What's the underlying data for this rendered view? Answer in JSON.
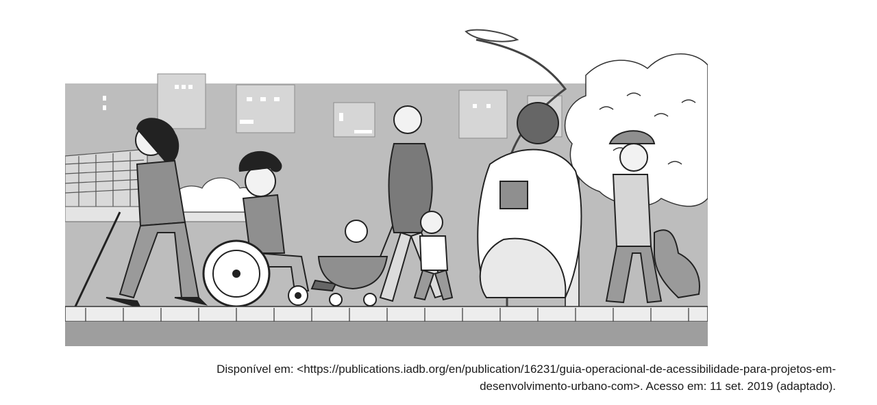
{
  "illustration": {
    "icon": "accessible-sidewalk-illustration"
  },
  "caption": {
    "line1": "Disponível em: <https://publications.iadb.org/en/publication/16231/guia-operacional-de-acessibilidade-para-projetos-em-",
    "line2": "desenvolvimento-urbano-com>. Acesso em: 11 set. 2019 (adaptado)."
  }
}
